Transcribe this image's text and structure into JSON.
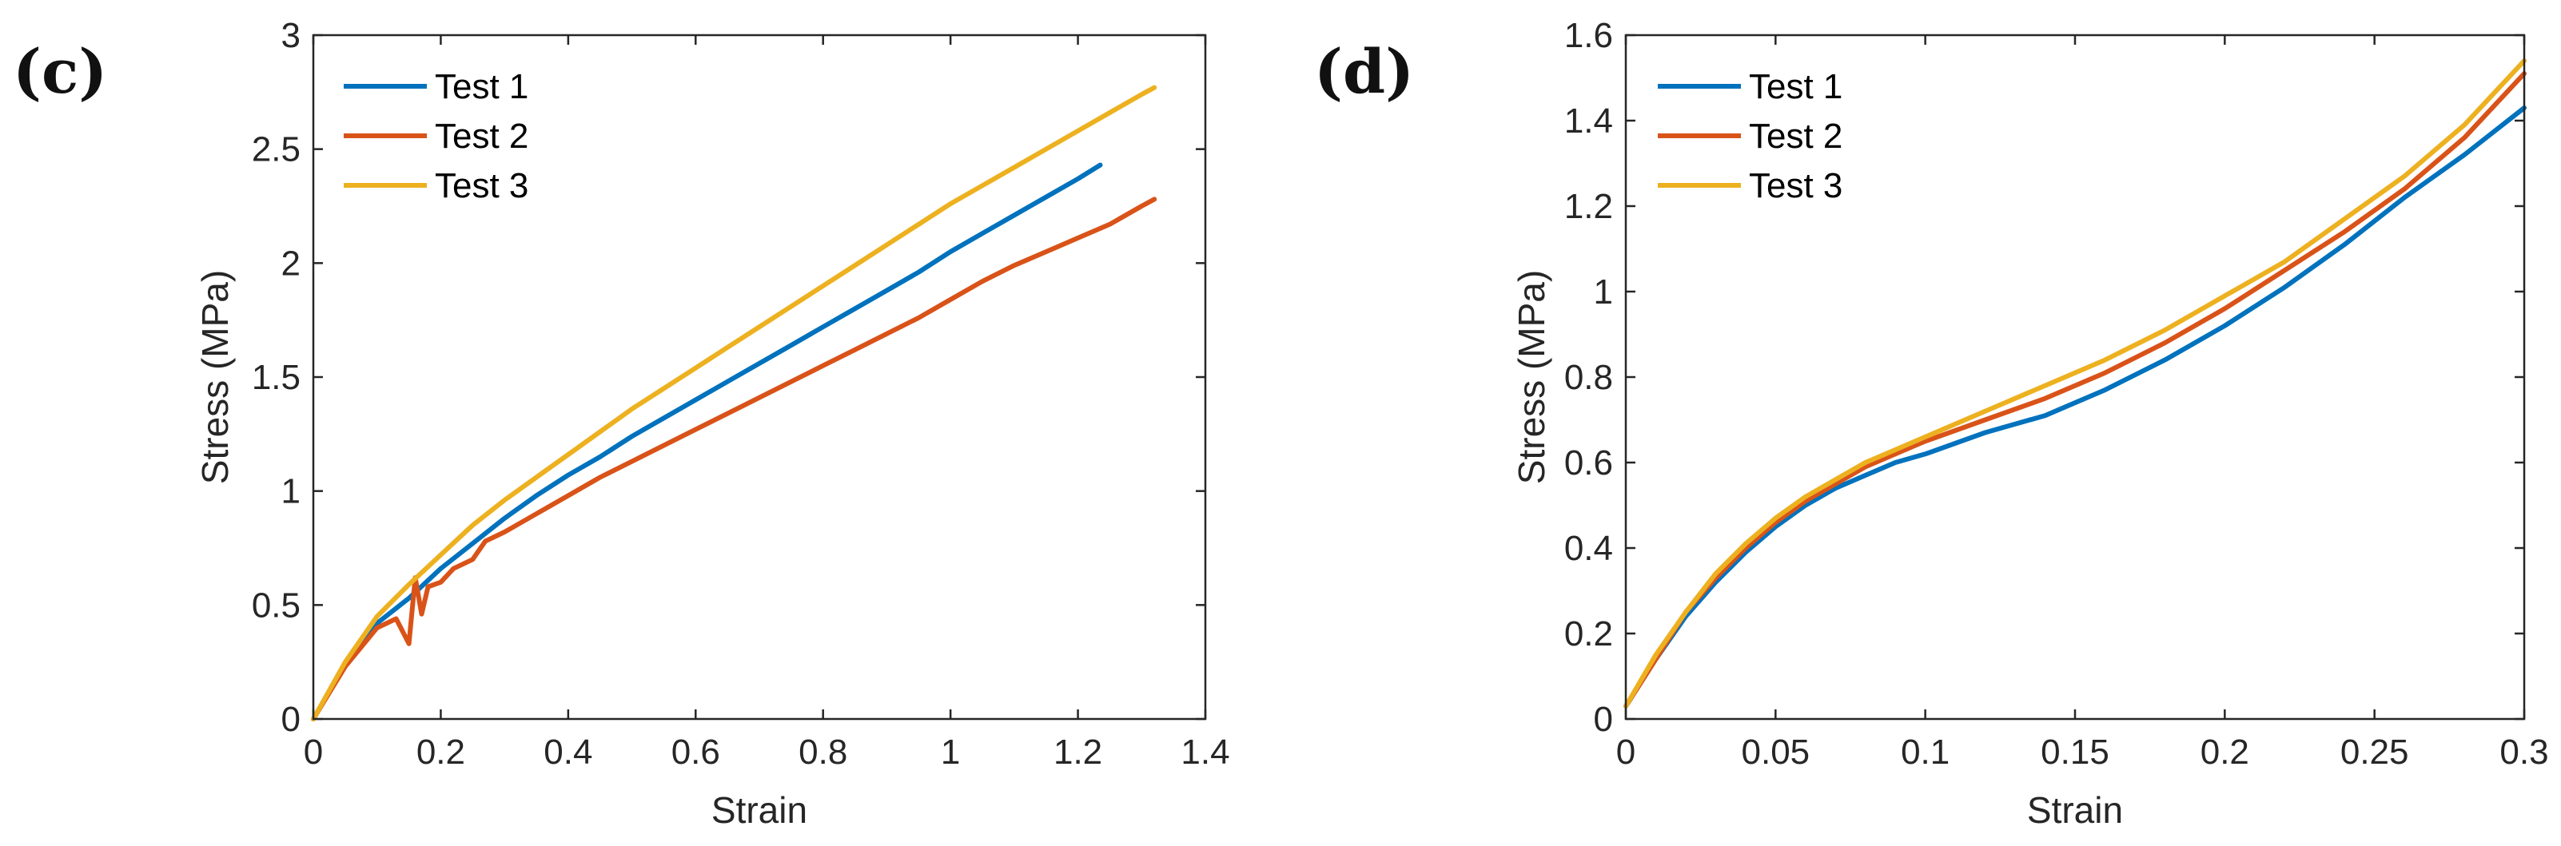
{
  "chart_data": [
    {
      "type": "line",
      "panel_label": "(c)",
      "xlabel": "Strain",
      "ylabel": "Stress (MPa)",
      "xlim": [
        0,
        1.4
      ],
      "ylim": [
        0,
        3
      ],
      "xticks": [
        0,
        0.2,
        0.4,
        0.6,
        0.8,
        1,
        1.2,
        1.4
      ],
      "xtick_labels": [
        "0",
        "0.2",
        "0.4",
        "0.6",
        "0.8",
        "1",
        "1.2",
        "1.4"
      ],
      "yticks": [
        0,
        0.5,
        1,
        1.5,
        2,
        2.5,
        3
      ],
      "ytick_labels": [
        "0",
        "0.5",
        "1",
        "1.5",
        "2",
        "2.5",
        "3"
      ],
      "legend_position": "top-left",
      "grid": false,
      "series": [
        {
          "name": "Test 1",
          "color": "#0072BD",
          "x": [
            0,
            0.05,
            0.1,
            0.15,
            0.2,
            0.25,
            0.3,
            0.35,
            0.4,
            0.45,
            0.5,
            0.55,
            0.6,
            0.65,
            0.7,
            0.75,
            0.8,
            0.85,
            0.9,
            0.95,
            1.0,
            1.05,
            1.1,
            1.15,
            1.2,
            1.235
          ],
          "y": [
            0,
            0.24,
            0.42,
            0.53,
            0.66,
            0.77,
            0.88,
            0.98,
            1.07,
            1.15,
            1.24,
            1.32,
            1.4,
            1.48,
            1.56,
            1.64,
            1.72,
            1.8,
            1.88,
            1.96,
            2.05,
            2.13,
            2.21,
            2.29,
            2.37,
            2.43
          ]
        },
        {
          "name": "Test 2",
          "color": "#D95319",
          "x": [
            0,
            0.05,
            0.1,
            0.13,
            0.15,
            0.16,
            0.17,
            0.18,
            0.2,
            0.22,
            0.25,
            0.27,
            0.3,
            0.35,
            0.4,
            0.45,
            0.5,
            0.55,
            0.6,
            0.65,
            0.7,
            0.75,
            0.8,
            0.85,
            0.9,
            0.95,
            1.0,
            1.05,
            1.1,
            1.15,
            1.2,
            1.25,
            1.3,
            1.32
          ],
          "y": [
            0,
            0.23,
            0.4,
            0.44,
            0.33,
            0.62,
            0.46,
            0.58,
            0.6,
            0.66,
            0.7,
            0.78,
            0.82,
            0.9,
            0.98,
            1.06,
            1.13,
            1.2,
            1.27,
            1.34,
            1.41,
            1.48,
            1.55,
            1.62,
            1.69,
            1.76,
            1.84,
            1.92,
            1.99,
            2.05,
            2.11,
            2.17,
            2.25,
            2.28
          ]
        },
        {
          "name": "Test 3",
          "color": "#EDB120",
          "x": [
            0,
            0.05,
            0.1,
            0.15,
            0.2,
            0.25,
            0.3,
            0.35,
            0.4,
            0.45,
            0.5,
            0.55,
            0.6,
            0.65,
            0.7,
            0.75,
            0.8,
            0.85,
            0.9,
            0.95,
            1.0,
            1.05,
            1.1,
            1.15,
            1.2,
            1.25,
            1.3,
            1.32
          ],
          "y": [
            0,
            0.25,
            0.45,
            0.59,
            0.72,
            0.85,
            0.96,
            1.06,
            1.16,
            1.26,
            1.36,
            1.45,
            1.54,
            1.63,
            1.72,
            1.81,
            1.9,
            1.99,
            2.08,
            2.17,
            2.26,
            2.34,
            2.42,
            2.5,
            2.58,
            2.66,
            2.74,
            2.77
          ]
        }
      ]
    },
    {
      "type": "line",
      "panel_label": "(d)",
      "xlabel": "Strain",
      "ylabel": "Stress (MPa)",
      "xlim": [
        0,
        0.3
      ],
      "ylim": [
        0,
        1.6
      ],
      "xticks": [
        0,
        0.05,
        0.1,
        0.15,
        0.2,
        0.25,
        0.3
      ],
      "xtick_labels": [
        "0",
        "0.05",
        "0.1",
        "0.15",
        "0.2",
        "0.25",
        "0.3"
      ],
      "yticks": [
        0,
        0.2,
        0.4,
        0.6,
        0.8,
        1,
        1.2,
        1.4,
        1.6
      ],
      "ytick_labels": [
        "0",
        "0.2",
        "0.4",
        "0.6",
        "0.8",
        "1",
        "1.2",
        "1.4",
        "1.6"
      ],
      "legend_position": "top-left",
      "grid": false,
      "series": [
        {
          "name": "Test 1",
          "color": "#0072BD",
          "x": [
            0,
            0.01,
            0.02,
            0.03,
            0.04,
            0.05,
            0.06,
            0.07,
            0.08,
            0.09,
            0.1,
            0.12,
            0.14,
            0.16,
            0.18,
            0.2,
            0.22,
            0.24,
            0.26,
            0.28,
            0.3
          ],
          "y": [
            0.03,
            0.14,
            0.24,
            0.32,
            0.39,
            0.45,
            0.5,
            0.54,
            0.57,
            0.6,
            0.62,
            0.67,
            0.71,
            0.77,
            0.84,
            0.92,
            1.01,
            1.11,
            1.22,
            1.32,
            1.43
          ]
        },
        {
          "name": "Test 2",
          "color": "#D95319",
          "x": [
            0,
            0.01,
            0.02,
            0.03,
            0.04,
            0.05,
            0.06,
            0.07,
            0.08,
            0.09,
            0.1,
            0.12,
            0.14,
            0.16,
            0.18,
            0.2,
            0.22,
            0.24,
            0.26,
            0.28,
            0.3
          ],
          "y": [
            0.03,
            0.14,
            0.25,
            0.33,
            0.4,
            0.46,
            0.51,
            0.55,
            0.59,
            0.62,
            0.65,
            0.7,
            0.75,
            0.81,
            0.88,
            0.96,
            1.05,
            1.14,
            1.24,
            1.36,
            1.51
          ]
        },
        {
          "name": "Test 3",
          "color": "#EDB120",
          "x": [
            0,
            0.01,
            0.02,
            0.03,
            0.04,
            0.05,
            0.06,
            0.07,
            0.08,
            0.09,
            0.1,
            0.12,
            0.14,
            0.16,
            0.18,
            0.2,
            0.22,
            0.24,
            0.26,
            0.28,
            0.3
          ],
          "y": [
            0.03,
            0.15,
            0.25,
            0.34,
            0.41,
            0.47,
            0.52,
            0.56,
            0.6,
            0.63,
            0.66,
            0.72,
            0.78,
            0.84,
            0.91,
            0.99,
            1.07,
            1.17,
            1.27,
            1.39,
            1.54
          ]
        }
      ]
    }
  ]
}
